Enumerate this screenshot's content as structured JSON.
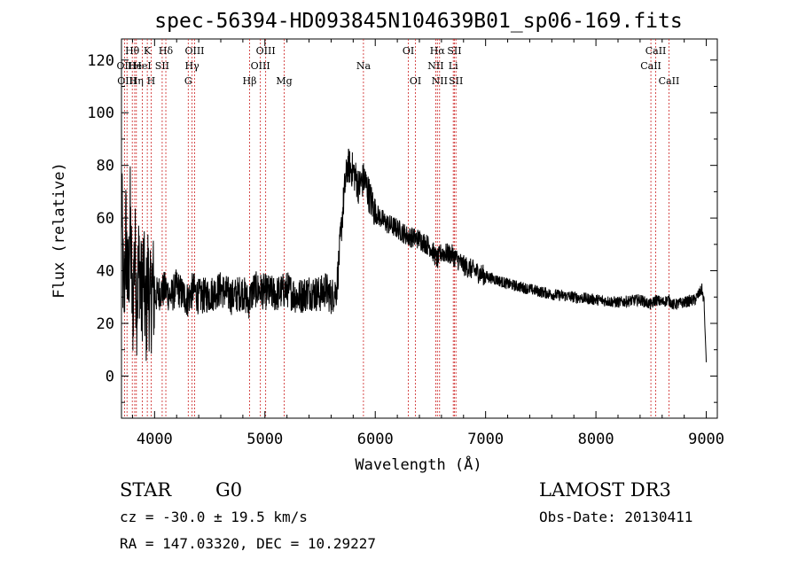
{
  "header": {
    "title": "spec-56394-HD093845N104639B01_sp06-169.fits"
  },
  "info": {
    "object_class": "STAR",
    "subclass": "G0",
    "survey": "LAMOST DR3",
    "redshift": "cz = -30.0 ± 19.5 km/s",
    "obs_date": "Obs-Date: 20130411",
    "coords": "RA = 147.03320, DEC =  10.29227"
  },
  "chart_data": {
    "type": "line",
    "title": "spec-56394-HD093845N104639B01_sp06-169.fits",
    "xlabel": "Wavelength (Å)",
    "ylabel": "Flux (relative)",
    "xlim": [
      3700,
      9100
    ],
    "ylim": [
      -16,
      128
    ],
    "x_ticks": [
      4000,
      5000,
      6000,
      7000,
      8000,
      9000
    ],
    "y_ticks": [
      0,
      20,
      40,
      60,
      80,
      100,
      120
    ],
    "line_color": "#000000",
    "marker_color": "#cc2222",
    "series": [
      {
        "name": "flux",
        "x": [
          3700,
          3720,
          3740,
          3760,
          3780,
          3800,
          3820,
          3840,
          3860,
          3880,
          3900,
          3920,
          3940,
          3960,
          3980,
          4000,
          4050,
          4100,
          4150,
          4200,
          4250,
          4300,
          4350,
          4400,
          4500,
          4600,
          4700,
          4800,
          4850,
          4900,
          5000,
          5100,
          5200,
          5300,
          5400,
          5500,
          5550,
          5600,
          5650,
          5700,
          5720,
          5750,
          5800,
          5850,
          5900,
          5950,
          6000,
          6100,
          6200,
          6300,
          6400,
          6500,
          6563,
          6600,
          6700,
          6800,
          6900,
          7000,
          7200,
          7400,
          7600,
          7800,
          8000,
          8200,
          8400,
          8500,
          8540,
          8600,
          8660,
          8700,
          8800,
          8900,
          8960,
          8980,
          9000
        ],
        "y": [
          70,
          25,
          55,
          30,
          60,
          22,
          50,
          28,
          45,
          30,
          40,
          20,
          38,
          25,
          35,
          30,
          32,
          33,
          30,
          34,
          31,
          29,
          33,
          30,
          31,
          33,
          30,
          32,
          28,
          33,
          32,
          31,
          33,
          30,
          32,
          31,
          33,
          30,
          33,
          60,
          70,
          80,
          78,
          72,
          75,
          68,
          62,
          58,
          56,
          53,
          52,
          49,
          44,
          47,
          46,
          42,
          40,
          38,
          35,
          33,
          31,
          30,
          29,
          28,
          29,
          27,
          29,
          28,
          29,
          27,
          28,
          29,
          33,
          28,
          5
        ]
      }
    ],
    "lines": [
      {
        "label": "OII",
        "wave": 3727,
        "row": 1
      },
      {
        "label": "Hθ",
        "wave": 3798,
        "row": 0
      },
      {
        "label": "OIII",
        "wave": 3750,
        "row": 2
      },
      {
        "label": "He",
        "wave": 3820,
        "row": 1
      },
      {
        "label": "Hη",
        "wave": 3835,
        "row": 2
      },
      {
        "label": "K",
        "wave": 3934,
        "row": 0
      },
      {
        "label": "HeI",
        "wave": 3889,
        "row": 1
      },
      {
        "label": "H",
        "wave": 3969,
        "row": 2
      },
      {
        "label": "SII",
        "wave": 4069,
        "row": 1
      },
      {
        "label": "Hδ",
        "wave": 4102,
        "row": 0
      },
      {
        "label": "OIII",
        "wave": 4363,
        "row": 0
      },
      {
        "label": "Hγ",
        "wave": 4340,
        "row": 1
      },
      {
        "label": "G",
        "wave": 4305,
        "row": 2
      },
      {
        "label": "Hβ",
        "wave": 4861,
        "row": 2
      },
      {
        "label": "OIII",
        "wave": 5007,
        "row": 0
      },
      {
        "label": "OIII",
        "wave": 4959,
        "row": 1
      },
      {
        "label": "Mg",
        "wave": 5175,
        "row": 2
      },
      {
        "label": "Na",
        "wave": 5893,
        "row": 1
      },
      {
        "label": "OI",
        "wave": 6300,
        "row": 0
      },
      {
        "label": "OI",
        "wave": 6364,
        "row": 2
      },
      {
        "label": "Hα",
        "wave": 6563,
        "row": 0
      },
      {
        "label": "NII",
        "wave": 6548,
        "row": 1
      },
      {
        "label": "NII",
        "wave": 6583,
        "row": 2
      },
      {
        "label": "SII",
        "wave": 6717,
        "row": 0
      },
      {
        "label": "Li",
        "wave": 6707,
        "row": 1
      },
      {
        "label": "SII",
        "wave": 6731,
        "row": 2
      },
      {
        "label": "CaII",
        "wave": 8542,
        "row": 0
      },
      {
        "label": "CaII",
        "wave": 8498,
        "row": 1
      },
      {
        "label": "CaII",
        "wave": 8662,
        "row": 2
      }
    ]
  }
}
